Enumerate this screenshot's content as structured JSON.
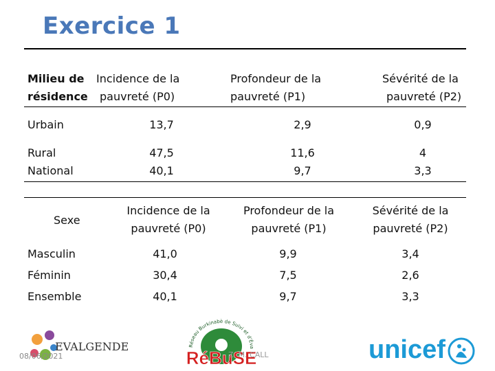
{
  "title": "Exercice 1",
  "table1": {
    "headers": [
      "Milieu de\nrésidence",
      "Incidence de la\npauvreté (P0)",
      "Profondeur de la\npauvreté (P1)",
      "Sévérité de la\npauvreté (P2)"
    ],
    "rows": [
      [
        "Urbain",
        "13,7",
        "2,9",
        "0,9"
      ],
      [
        "Rural",
        "47,5",
        "11,6",
        "4"
      ],
      [
        "National",
        "40,1",
        "9,7",
        "3,3"
      ]
    ]
  },
  "table2": {
    "headers": [
      "Sexe",
      "Incidence de la\npauvreté (P0)",
      "Profondeur de la\npauvreté (P1)",
      "Sévérité de la\npauvreté (P2)"
    ],
    "rows": [
      [
        "Masculin",
        "41,0",
        "9,9",
        "3,4"
      ],
      [
        "Féminin",
        "30,4",
        "7,5",
        "2,6"
      ],
      [
        "Ensemble",
        "40,1",
        "9,7",
        "3,3"
      ]
    ]
  },
  "footer": {
    "date": "08/06/2021",
    "author": "Z. M. CALL",
    "logos": {
      "evalgender": "EVALGENDER+",
      "rebuse": "RéBuSE",
      "rebuse_ring": "Réseau Burkinabè de Suivi et d'Évaluation",
      "unicef": "unicef"
    }
  },
  "colors": {
    "title": "#4a78b8",
    "rebuse_red": "#d42020",
    "rebuse_green": "#2e8b3a",
    "unicef_blue": "#1c9ad6"
  }
}
